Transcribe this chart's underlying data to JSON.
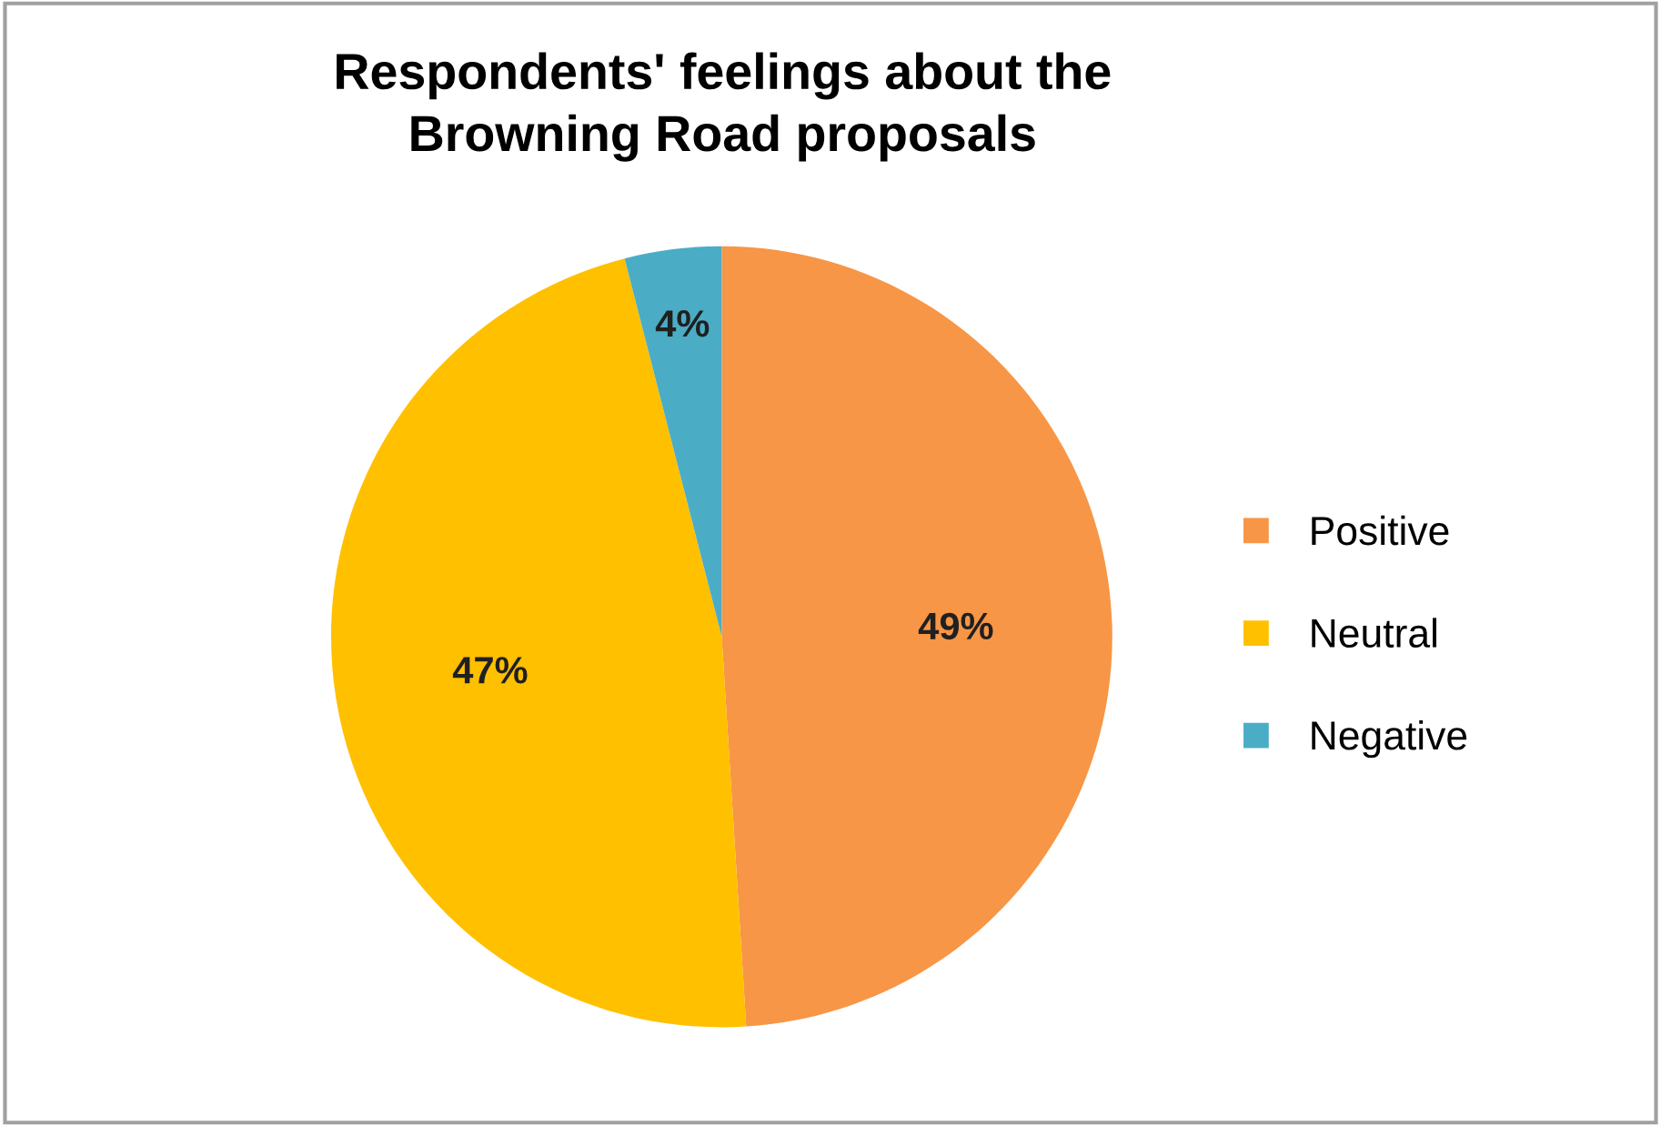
{
  "chart_data": {
    "type": "pie",
    "title": "Respondents' feelings about the\nBrowning Road proposals",
    "categories": [
      "Positive",
      "Neutral",
      "Negative"
    ],
    "values": [
      49,
      47,
      4
    ],
    "colors": [
      "#f79646",
      "#ffc000",
      "#4bacc6"
    ],
    "value_labels": [
      "49%",
      "47%",
      "4%"
    ],
    "legend": "right"
  }
}
